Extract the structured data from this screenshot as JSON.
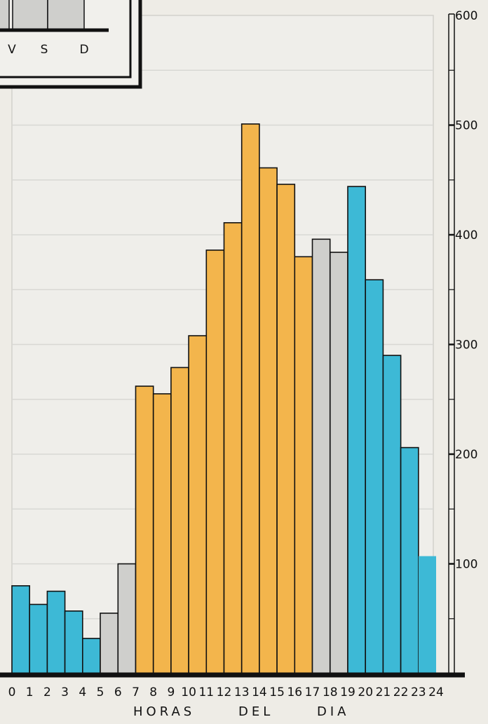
{
  "chart_data": [
    {
      "type": "bar",
      "title": "",
      "xlabel": "HORAS DEL DIA",
      "xlabel_words": [
        "HORAS",
        "DEL",
        "DIA"
      ],
      "ylabel": "",
      "ylim": [
        0,
        600
      ],
      "y_ticks": [
        100,
        200,
        300,
        400,
        500,
        600
      ],
      "y_axis_position": "right",
      "grid": true,
      "x_tick_labels": [
        "0",
        "1",
        "2",
        "3",
        "4",
        "5",
        "6",
        "7",
        "8",
        "9",
        "10",
        "11",
        "12",
        "13",
        "14",
        "15",
        "16",
        "17",
        "18",
        "19",
        "20",
        "21",
        "22",
        "23",
        "24"
      ],
      "categories": [
        "0-1",
        "1-2",
        "2-3",
        "3-4",
        "4-5",
        "5-6",
        "6-7",
        "7-8",
        "8-9",
        "9-10",
        "10-11",
        "11-12",
        "12-13",
        "13-14",
        "14-15",
        "15-16",
        "16-17",
        "17-18",
        "18-19",
        "19-20",
        "20-21",
        "21-22",
        "22-23",
        "23-24"
      ],
      "values": [
        80,
        63,
        75,
        57,
        32,
        55,
        100,
        262,
        255,
        279,
        308,
        386,
        411,
        501,
        461,
        446,
        380,
        396,
        384,
        444,
        359,
        290,
        206,
        107
      ],
      "bar_colors": [
        "#3db9d6",
        "#3db9d6",
        "#3db9d6",
        "#3db9d6",
        "#3db9d6",
        "#cfcfcc",
        "#cfcfcc",
        "#f3b54c",
        "#f3b54c",
        "#f3b54c",
        "#f3b54c",
        "#f3b54c",
        "#f3b54c",
        "#f3b54c",
        "#f3b54c",
        "#f3b54c",
        "#f3b54c",
        "#cfcfcc",
        "#cfcfcc",
        "#3db9d6",
        "#3db9d6",
        "#3db9d6",
        "#3db9d6",
        "#3db9d6"
      ]
    },
    {
      "type": "bar",
      "title": "",
      "partial": true,
      "categories": [
        "V",
        "S",
        "D"
      ],
      "colors": {
        "bar": "#cfcfcc"
      }
    }
  ],
  "colors": {
    "background": "#eeece6",
    "gridline": "#d8d8d4",
    "axis": "#111111",
    "blue": "#3db9d6",
    "gray": "#cfcfcc",
    "orange": "#f3b54c"
  }
}
